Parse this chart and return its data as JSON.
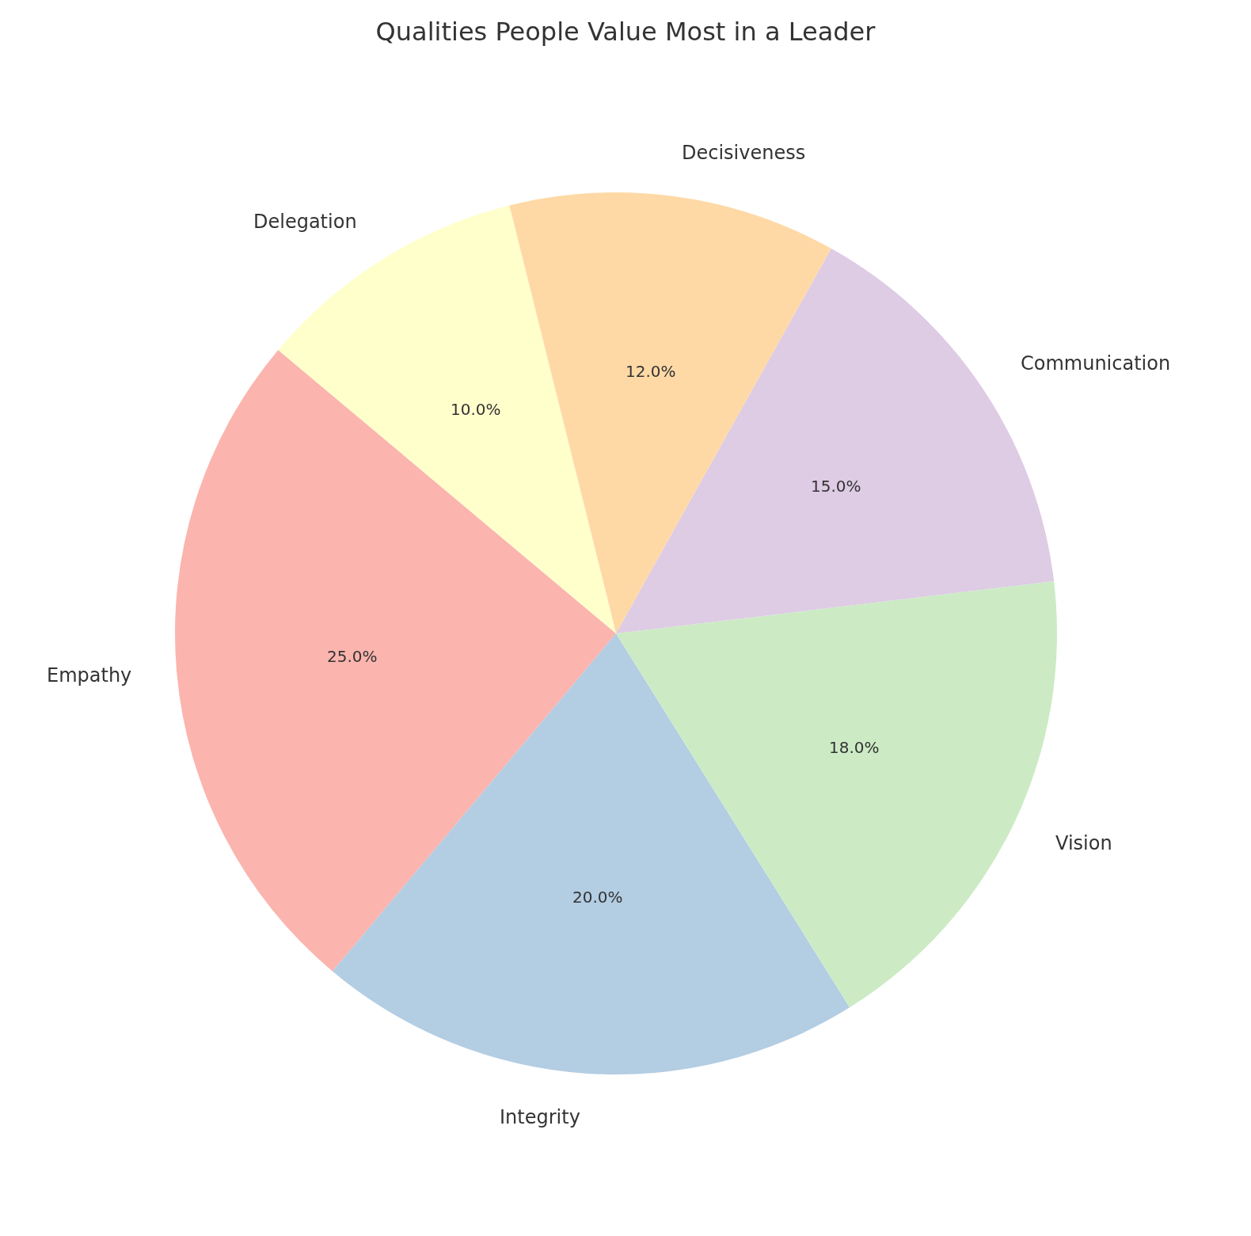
{
  "chart_data": {
    "type": "pie",
    "title": "Qualities People Value Most in a Leader",
    "categories": [
      "Empathy",
      "Integrity",
      "Vision",
      "Communication",
      "Decisiveness",
      "Delegation"
    ],
    "values": [
      25,
      20,
      18,
      15,
      12,
      10
    ],
    "colors": [
      "#fbb4ae",
      "#b3cde3",
      "#ccebc5",
      "#decbe4",
      "#fed9a6",
      "#ffffcc"
    ],
    "value_labels": [
      "25.0%",
      "20.0%",
      "18.0%",
      "15.0%",
      "12.0%",
      "10.0%"
    ],
    "legend": false
  }
}
